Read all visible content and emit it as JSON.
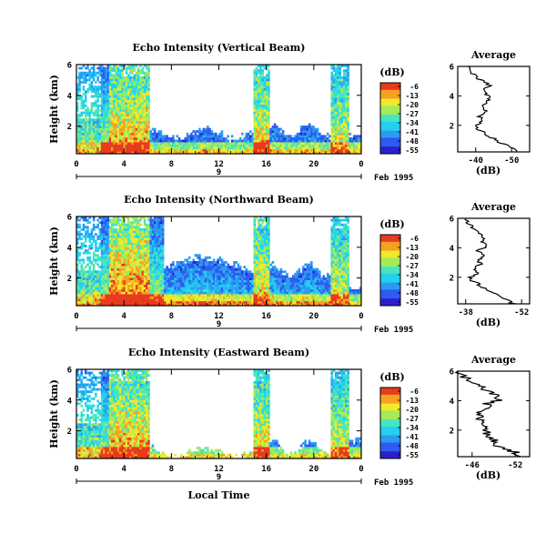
{
  "xlabel": "Local Time",
  "date_label": "Feb 1995",
  "day_label": "9",
  "colorbar": {
    "unit": "(dB)",
    "ticks": [
      "-6",
      "-13",
      "-20",
      "-27",
      "-34",
      "-41",
      "-48",
      "-55"
    ],
    "range": [
      -55,
      -6
    ],
    "colors": [
      "#2a1fd0",
      "#2e5bf0",
      "#2b9bf2",
      "#22d0f0",
      "#45e6c0",
      "#a6ea5a",
      "#f0ea2c",
      "#f8a020",
      "#e83a1e"
    ]
  },
  "chart_data": [
    {
      "type": "heatmap",
      "title": "Echo Intensity (Vertical Beam)",
      "xlabel": "Local Time",
      "ylabel": "Height (km)",
      "xlim": [
        0,
        24
      ],
      "ylim": [
        0.2,
        6
      ],
      "xticks": [
        "0",
        "4",
        "8",
        "12",
        "16",
        "20",
        "0"
      ],
      "yticks": [
        "2",
        "4",
        "6"
      ],
      "profile": {
        "title": "Average",
        "xlabel": "(dB)",
        "xticks": [
          "-40",
          "-50"
        ],
        "xlim": [
          -35,
          -55
        ],
        "heights": [
          0.2,
          0.5,
          0.8,
          1.1,
          1.4,
          1.7,
          2.0,
          2.3,
          2.6,
          2.9,
          3.2,
          3.5,
          3.8,
          4.1,
          4.4,
          4.7,
          5.0,
          5.3,
          5.6,
          6.0
        ],
        "values": [
          -52,
          -50,
          -47,
          -45,
          -43,
          -41,
          -40,
          -42,
          -41,
          -43,
          -42,
          -43,
          -44,
          -43,
          -42,
          -44,
          -42,
          -40,
          -39,
          -38
        ]
      }
    },
    {
      "type": "heatmap",
      "title": "Echo Intensity (Northward Beam)",
      "xlabel": "Local Time",
      "ylabel": "Height (km)",
      "xlim": [
        0,
        24
      ],
      "ylim": [
        0.2,
        6
      ],
      "xticks": [
        "0",
        "4",
        "8",
        "12",
        "16",
        "20",
        "0"
      ],
      "yticks": [
        "2",
        "4",
        "6"
      ],
      "profile": {
        "title": "Average",
        "xlabel": "(dB)",
        "xticks": [
          "-38",
          "-52"
        ],
        "xlim": [
          -36,
          -54
        ],
        "heights": [
          0.2,
          0.5,
          0.8,
          1.1,
          1.4,
          1.7,
          2.0,
          2.3,
          2.6,
          2.9,
          3.2,
          3.5,
          3.8,
          4.1,
          4.4,
          4.7,
          5.0,
          5.3,
          5.6,
          6.0
        ],
        "values": [
          -50,
          -48,
          -46,
          -44,
          -42,
          -40,
          -39,
          -41,
          -40,
          -42,
          -41,
          -43,
          -41,
          -43,
          -42,
          -42,
          -41,
          -40,
          -39,
          -38
        ]
      }
    },
    {
      "type": "heatmap",
      "title": "Echo Intensity (Eastward Beam)",
      "xlabel": "Local Time",
      "ylabel": "Height (km)",
      "xlim": [
        0,
        24
      ],
      "ylim": [
        0.2,
        6
      ],
      "xticks": [
        "0",
        "4",
        "8",
        "12",
        "16",
        "20",
        "0"
      ],
      "yticks": [
        "2",
        "4",
        "6"
      ],
      "profile": {
        "title": "Average",
        "xlabel": "(dB)",
        "xticks": [
          "-46",
          "-52"
        ],
        "xlim": [
          -44,
          -54
        ],
        "heights": [
          0.2,
          0.5,
          0.8,
          1.1,
          1.4,
          1.7,
          2.0,
          2.3,
          2.6,
          2.9,
          3.2,
          3.5,
          3.8,
          4.1,
          4.4,
          4.7,
          5.0,
          5.3,
          5.6,
          6.0
        ],
        "values": [
          -53,
          -52,
          -50,
          -49,
          -49,
          -48,
          -48,
          -48,
          -47,
          -47,
          -47,
          -48,
          -48,
          -50,
          -49,
          -48,
          -47,
          -46,
          -45,
          -44
        ]
      }
    }
  ]
}
